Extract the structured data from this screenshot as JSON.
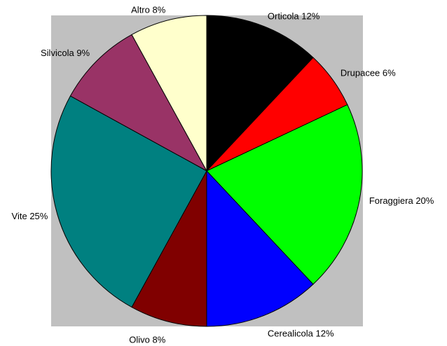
{
  "chart_data": {
    "type": "pie",
    "categories": [
      "Orticola",
      "Drupacee",
      "Foraggiera",
      "Cerealicola",
      "Olivo",
      "Vite",
      "Silvicola",
      "Altro"
    ],
    "values": [
      12,
      6,
      20,
      12,
      8,
      25,
      9,
      8
    ],
    "value_labels": [
      "12%",
      "6%",
      "20%",
      "12%",
      "8%",
      "25%",
      "9%",
      "8%"
    ],
    "colors": [
      "#000000",
      "#ff0000",
      "#00ff00",
      "#0000ff",
      "#800000",
      "#008080",
      "#993366",
      "#ffffcc"
    ]
  }
}
